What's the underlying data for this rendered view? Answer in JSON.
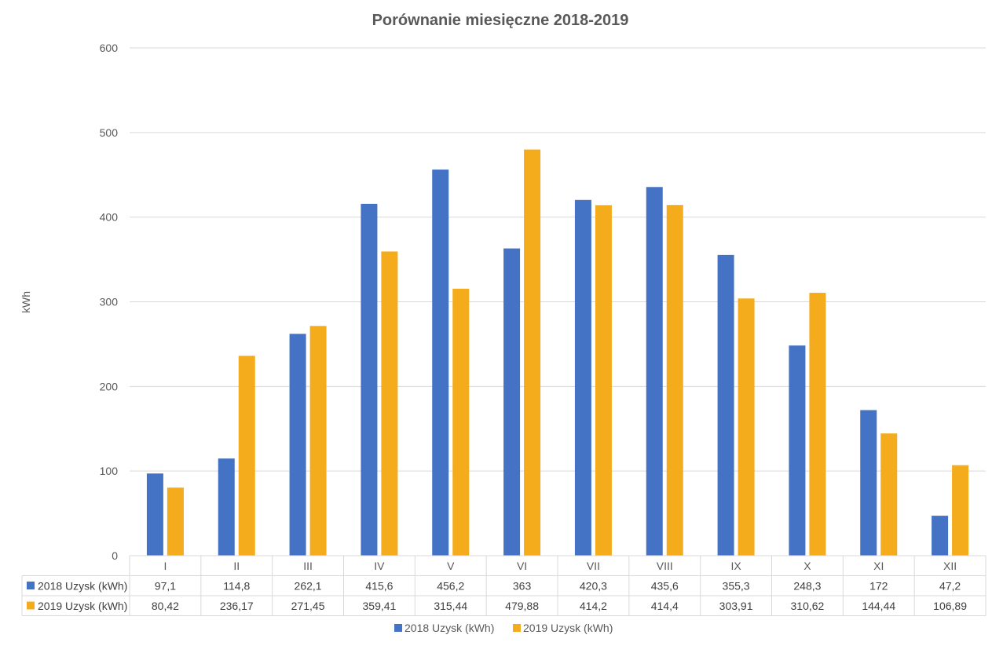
{
  "chart_data": {
    "type": "bar",
    "title": "Porównanie miesięczne 2018-2019",
    "xlabel": "",
    "ylabel": "kWh",
    "ylim": [
      0,
      600
    ],
    "yticks": [
      "0",
      "100",
      "200",
      "300",
      "400",
      "500",
      "600"
    ],
    "ytick_values": [
      0,
      100,
      200,
      300,
      400,
      500,
      600
    ],
    "grid": true,
    "legend_position": "bottom",
    "data_table": true,
    "categories": [
      "I",
      "II",
      "III",
      "IV",
      "V",
      "VI",
      "VII",
      "VIII",
      "IX",
      "X",
      "XI",
      "XII"
    ],
    "series": [
      {
        "name": "2018 Uzysk (kWh)",
        "color": "#4472c4",
        "values": [
          97.1,
          114.8,
          262.1,
          415.6,
          456.2,
          363,
          420.3,
          435.6,
          355.3,
          248.3,
          172,
          47.2
        ],
        "labels": [
          "97,1",
          "114,8",
          "262,1",
          "415,6",
          "456,2",
          "363",
          "420,3",
          "435,6",
          "355,3",
          "248,3",
          "172",
          "47,2"
        ]
      },
      {
        "name": "2019 Uzysk (kWh)",
        "color": "#f4ac1c",
        "values": [
          80.42,
          236.17,
          271.45,
          359.41,
          315.44,
          479.88,
          414.2,
          414.4,
          303.91,
          310.62,
          144.44,
          106.89
        ],
        "labels": [
          "80,42",
          "236,17",
          "271,45",
          "359,41",
          "315,44",
          "479,88",
          "414,2",
          "414,4",
          "303,91",
          "310,62",
          "144,44",
          "106,89"
        ]
      }
    ]
  }
}
